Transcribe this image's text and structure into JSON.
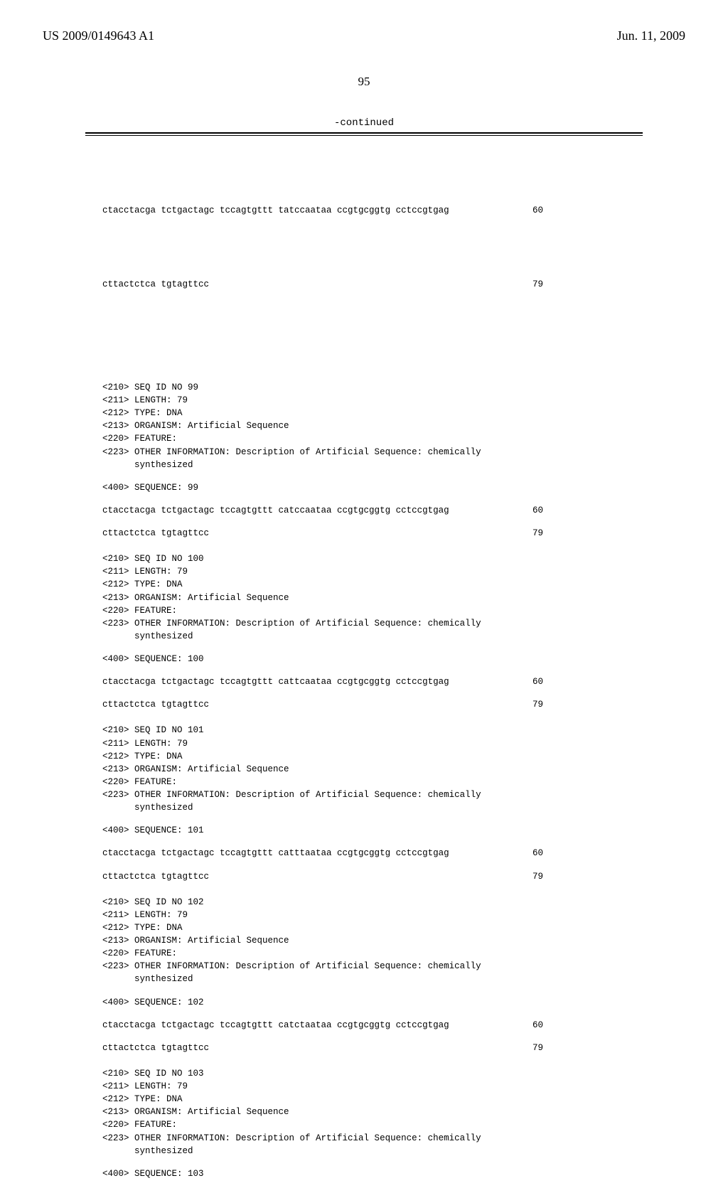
{
  "header": {
    "pub_number": "US 2009/0149643 A1",
    "pub_date": "Jun. 11, 2009",
    "page_number": "95",
    "continued": "-continued"
  },
  "top_seq": {
    "line1": "ctacctacga tctgactagc tccagtgttt tatccaataa ccgtgcggtg cctccgtgag",
    "pos1": "60",
    "line2": "cttactctca tgtagttcc",
    "pos2": "79"
  },
  "entries": [
    {
      "meta": [
        "<210> SEQ ID NO 99",
        "<211> LENGTH: 79",
        "<212> TYPE: DNA",
        "<213> ORGANISM: Artificial Sequence",
        "<220> FEATURE:",
        "<223> OTHER INFORMATION: Description of Artificial Sequence: chemically",
        "      synthesized"
      ],
      "seq_label": "<400> SEQUENCE: 99",
      "line1": "ctacctacga tctgactagc tccagtgttt catccaataa ccgtgcggtg cctccgtgag",
      "pos1": "60",
      "line2": "cttactctca tgtagttcc",
      "pos2": "79"
    },
    {
      "meta": [
        "<210> SEQ ID NO 100",
        "<211> LENGTH: 79",
        "<212> TYPE: DNA",
        "<213> ORGANISM: Artificial Sequence",
        "<220> FEATURE:",
        "<223> OTHER INFORMATION: Description of Artificial Sequence: chemically",
        "      synthesized"
      ],
      "seq_label": "<400> SEQUENCE: 100",
      "line1": "ctacctacga tctgactagc tccagtgttt cattcaataa ccgtgcggtg cctccgtgag",
      "pos1": "60",
      "line2": "cttactctca tgtagttcc",
      "pos2": "79"
    },
    {
      "meta": [
        "<210> SEQ ID NO 101",
        "<211> LENGTH: 79",
        "<212> TYPE: DNA",
        "<213> ORGANISM: Artificial Sequence",
        "<220> FEATURE:",
        "<223> OTHER INFORMATION: Description of Artificial Sequence: chemically",
        "      synthesized"
      ],
      "seq_label": "<400> SEQUENCE: 101",
      "line1": "ctacctacga tctgactagc tccagtgttt catttaataa ccgtgcggtg cctccgtgag",
      "pos1": "60",
      "line2": "cttactctca tgtagttcc",
      "pos2": "79"
    },
    {
      "meta": [
        "<210> SEQ ID NO 102",
        "<211> LENGTH: 79",
        "<212> TYPE: DNA",
        "<213> ORGANISM: Artificial Sequence",
        "<220> FEATURE:",
        "<223> OTHER INFORMATION: Description of Artificial Sequence: chemically",
        "      synthesized"
      ],
      "seq_label": "<400> SEQUENCE: 102",
      "line1": "ctacctacga tctgactagc tccagtgttt catctaataa ccgtgcggtg cctccgtgag",
      "pos1": "60",
      "line2": "cttactctca tgtagttcc",
      "pos2": "79"
    },
    {
      "meta": [
        "<210> SEQ ID NO 103",
        "<211> LENGTH: 79",
        "<212> TYPE: DNA",
        "<213> ORGANISM: Artificial Sequence",
        "<220> FEATURE:",
        "<223> OTHER INFORMATION: Description of Artificial Sequence: chemically",
        "      synthesized"
      ],
      "seq_label": "<400> SEQUENCE: 103",
      "line1": "",
      "pos1": "",
      "line2": "",
      "pos2": ""
    }
  ]
}
